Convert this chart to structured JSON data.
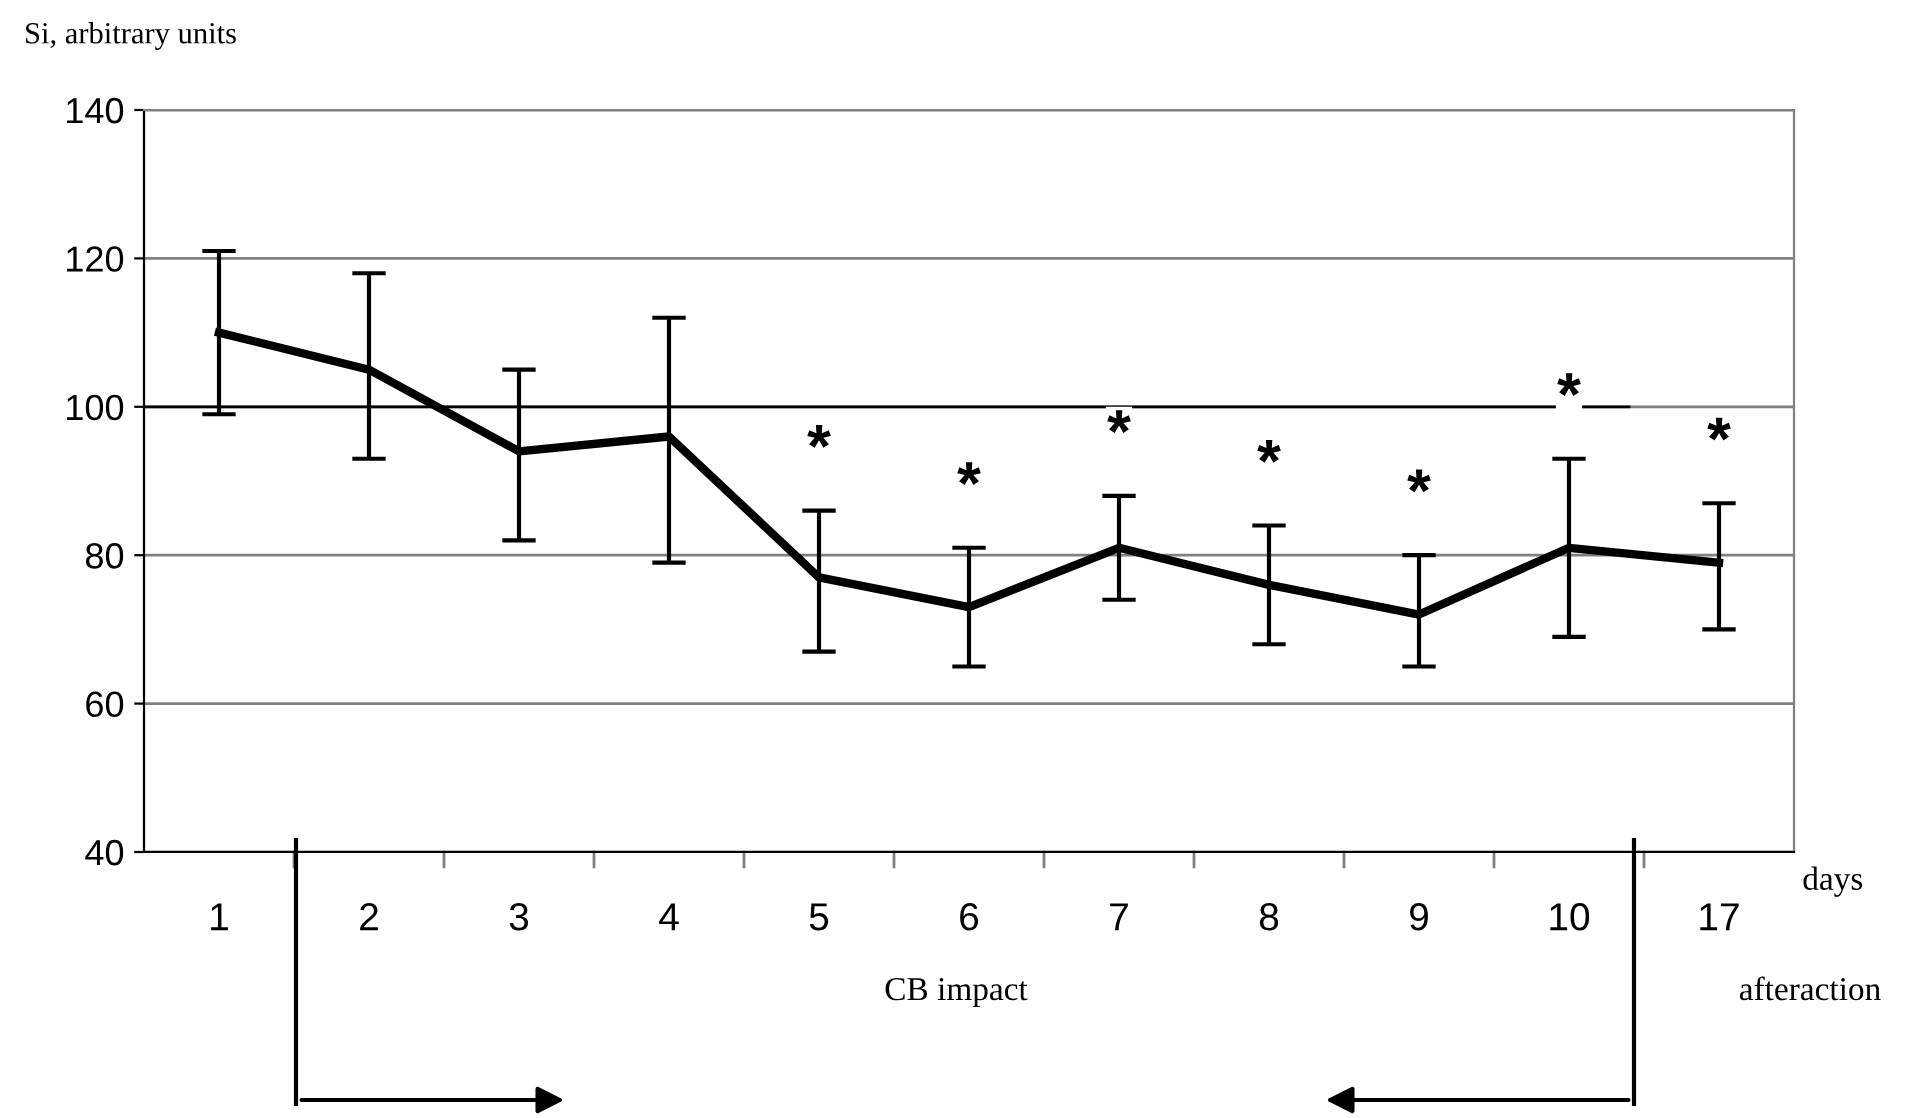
{
  "chart_data": {
    "type": "line",
    "ylabel": "Si, arbitrary units",
    "xlabel": "days",
    "categories": [
      "1",
      "2",
      "3",
      "4",
      "5",
      "6",
      "7",
      "8",
      "9",
      "10",
      "17"
    ],
    "series": [
      {
        "color": "#000000",
        "values": [
          110,
          105,
          94,
          96,
          77,
          73,
          81,
          76,
          72,
          81,
          79
        ],
        "errors": [
          [
            99,
            121
          ],
          [
            93,
            118
          ],
          [
            82,
            105
          ],
          [
            79,
            112
          ],
          [
            67,
            86
          ],
          [
            65,
            81
          ],
          [
            74,
            88
          ],
          [
            68,
            84
          ],
          [
            65,
            80
          ],
          [
            69,
            93
          ],
          [
            70,
            87
          ]
        ]
      }
    ],
    "ylim": [
      40,
      140
    ],
    "yticks": [
      40,
      60,
      80,
      100,
      120,
      140
    ],
    "grid": "y",
    "marker": "none",
    "line_style": "solid",
    "legend": false,
    "ref_lines": [
      {
        "axis": "y",
        "value": 100,
        "color": "#000000"
      }
    ],
    "annotations": [
      "*",
      "*",
      "*",
      "*",
      "*",
      "*",
      "*",
      "CB impact",
      "afteraction"
    ]
  }
}
